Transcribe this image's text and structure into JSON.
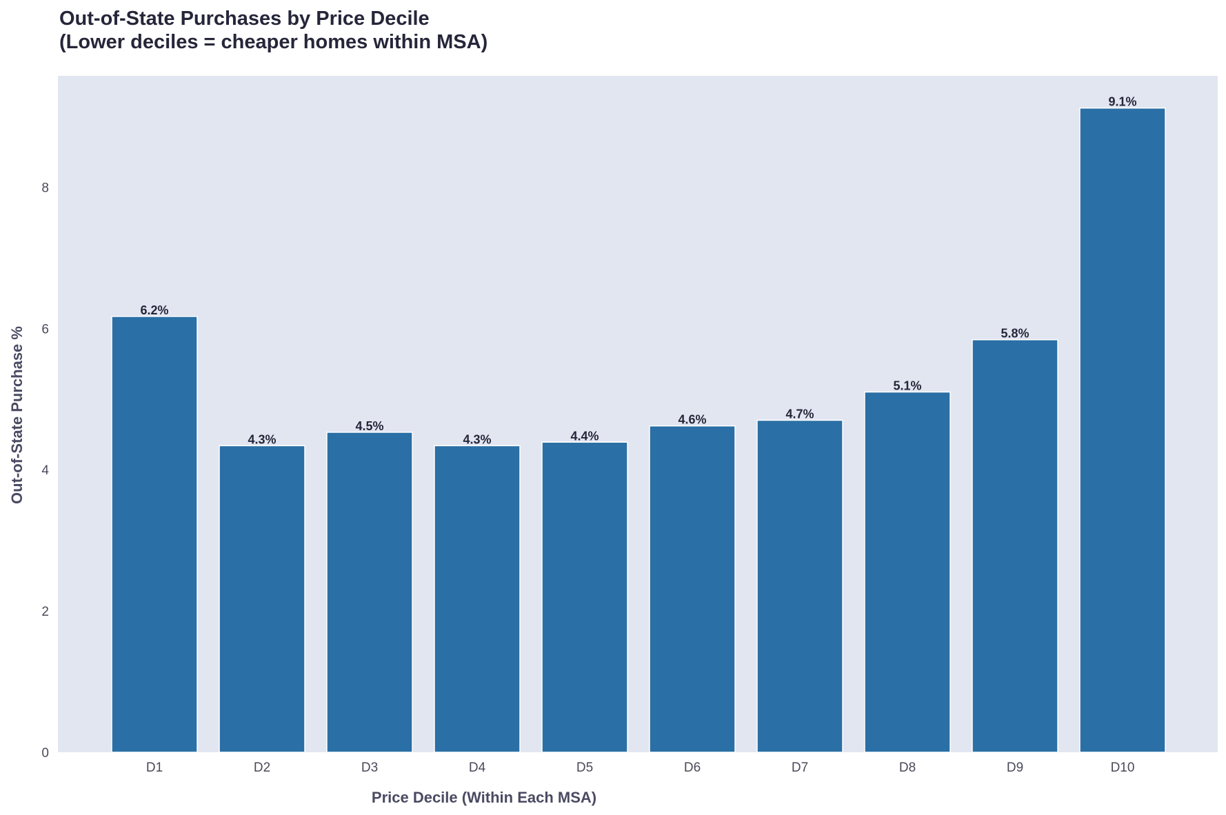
{
  "chart_data": {
    "type": "bar",
    "title_lines": [
      "Out-of-State Purchases by Price Decile",
      "(Lower deciles = cheaper homes within MSA)"
    ],
    "xlabel": "Price Decile (Within Each MSA)",
    "ylabel": "Out-of-State Purchase %",
    "categories": [
      "D1",
      "D2",
      "D3",
      "D4",
      "D5",
      "D6",
      "D7",
      "D8",
      "D9",
      "D10"
    ],
    "values": [
      6.17,
      4.34,
      4.53,
      4.34,
      4.39,
      4.62,
      4.7,
      5.1,
      5.84,
      9.12
    ],
    "data_labels": [
      "6.2%",
      "4.3%",
      "4.5%",
      "4.3%",
      "4.4%",
      "4.6%",
      "4.7%",
      "5.1%",
      "5.8%",
      "9.1%"
    ],
    "yticks": [
      0,
      2,
      4,
      6,
      8
    ],
    "ytick_labels": [
      "0",
      "2",
      "4",
      "6",
      "8"
    ],
    "ylim": [
      0,
      9.576
    ],
    "grid": false,
    "legend": "none",
    "colors": {
      "bar": "#2a6fa5",
      "bar_edge": "#ffffff",
      "plot_background": "#e2e6f1",
      "title": "#26263a",
      "axis_label": "#4a4a62",
      "tick_label": "#4a4a5a",
      "data_label": "#26263a"
    }
  }
}
